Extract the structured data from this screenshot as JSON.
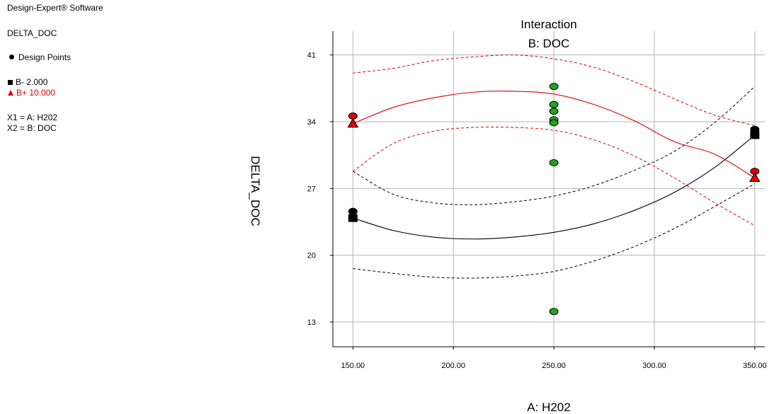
{
  "info": {
    "software": "Design-Expert® Software",
    "response": "DELTA_DOC",
    "design_points_label": "Design Points",
    "legend_low": "B- 2.000",
    "legend_high": "B+ 10.000",
    "x1": "X1 = A: H202",
    "x2": "X2 = B: DOC"
  },
  "colors": {
    "low_series": "#000000",
    "high_series": "#e00000",
    "design_point_fill": "#1fa51f",
    "grid": "#b4b4b4"
  },
  "chart_data": {
    "type": "line",
    "title": "Interaction",
    "subtitle": "B: DOC",
    "xlabel": "A: H202",
    "ylabel": "DELTA_DOC",
    "xlim": [
      140,
      355
    ],
    "ylim": [
      10.4,
      43.5
    ],
    "xticks": [
      "150.00",
      "200.00",
      "250.00",
      "300.00",
      "350.00"
    ],
    "yticks": [
      "13",
      "20",
      "27",
      "34",
      "41"
    ],
    "grid": true,
    "series": [
      {
        "name": "B- 2.000",
        "color": "#000000",
        "marker": "square",
        "x": [
          150,
          170,
          190,
          210,
          230,
          250,
          270,
          290,
          310,
          330,
          350
        ],
        "fit": [
          23.9,
          22.6,
          21.9,
          21.7,
          21.9,
          22.4,
          23.3,
          24.7,
          26.6,
          29.2,
          32.6
        ],
        "lower": [
          18.6,
          18.1,
          17.7,
          17.6,
          17.8,
          18.3,
          19.4,
          20.9,
          22.8,
          25.1,
          27.5
        ],
        "upper": [
          28.8,
          26.4,
          25.5,
          25.3,
          25.6,
          26.2,
          27.3,
          28.9,
          30.9,
          33.9,
          37.7
        ],
        "markers": [
          {
            "x": 150,
            "y": 23.9
          },
          {
            "x": 350,
            "y": 32.6
          }
        ]
      },
      {
        "name": "B+ 10.000",
        "color": "#e00000",
        "marker": "triangle",
        "x": [
          150,
          170,
          190,
          210,
          230,
          250,
          270,
          290,
          310,
          330,
          350
        ],
        "fit": [
          33.8,
          35.5,
          36.5,
          37.1,
          37.2,
          36.9,
          35.8,
          34.1,
          31.9,
          30.6,
          28.1
        ],
        "lower": [
          28.8,
          31.7,
          33.0,
          33.4,
          33.4,
          33.1,
          32.1,
          30.4,
          28.1,
          25.5,
          23.1
        ],
        "upper": [
          39.1,
          39.6,
          40.4,
          40.8,
          41.0,
          40.6,
          39.7,
          38.2,
          36.4,
          34.7,
          33.6
        ],
        "markers": [
          {
            "x": 150,
            "y": 33.8
          },
          {
            "x": 350,
            "y": 28.1
          }
        ]
      }
    ],
    "design_points": [
      {
        "x": 150,
        "y": 34.6,
        "group": "high"
      },
      {
        "x": 150,
        "y": 24.6,
        "group": "low"
      },
      {
        "x": 250,
        "y": 37.7,
        "group": "center"
      },
      {
        "x": 250,
        "y": 35.8,
        "group": "center"
      },
      {
        "x": 250,
        "y": 35.1,
        "group": "center"
      },
      {
        "x": 250,
        "y": 34.2,
        "group": "center"
      },
      {
        "x": 250,
        "y": 33.9,
        "group": "center"
      },
      {
        "x": 250,
        "y": 29.7,
        "group": "center"
      },
      {
        "x": 250,
        "y": 14.1,
        "group": "center"
      },
      {
        "x": 350,
        "y": 33.2,
        "group": "low"
      },
      {
        "x": 350,
        "y": 28.8,
        "group": "high"
      }
    ]
  }
}
